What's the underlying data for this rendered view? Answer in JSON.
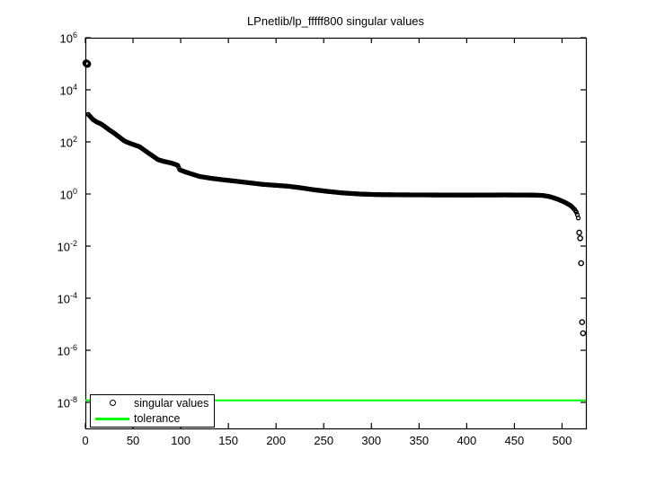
{
  "window": {
    "background": "#ffffff"
  },
  "chart_data": {
    "type": "scatter",
    "title": "LPnetlib/lp_fffff800 singular values",
    "xlim": [
      0,
      525
    ],
    "ylim_log10": [
      -9,
      6
    ],
    "x_ticks": [
      0,
      50,
      100,
      150,
      200,
      250,
      300,
      350,
      400,
      450,
      500
    ],
    "y_tick_exponents": [
      6,
      4,
      2,
      0,
      -2,
      -4,
      -6,
      -8
    ],
    "grid": false,
    "legend": {
      "position": "southwest",
      "entries": [
        "singular values",
        "tolerance"
      ]
    },
    "series": [
      {
        "name": "singular values",
        "marker": "o",
        "color": "#000000",
        "n_points": 522,
        "anchors": [
          [
            1,
            105000
          ],
          [
            2,
            98000
          ],
          [
            3,
            1150
          ],
          [
            5,
            950
          ],
          [
            8,
            720
          ],
          [
            12,
            580
          ],
          [
            16,
            500
          ],
          [
            20,
            400
          ],
          [
            25,
            290
          ],
          [
            30,
            220
          ],
          [
            36,
            150
          ],
          [
            40,
            115
          ],
          [
            43,
            100
          ],
          [
            50,
            80
          ],
          [
            57,
            65
          ],
          [
            63,
            45
          ],
          [
            70,
            30
          ],
          [
            76,
            21
          ],
          [
            82,
            18
          ],
          [
            90,
            15.5
          ],
          [
            95,
            13.5
          ],
          [
            97,
            12.5
          ],
          [
            99,
            8.5
          ],
          [
            105,
            7
          ],
          [
            112,
            5.8
          ],
          [
            120,
            4.7
          ],
          [
            132,
            4.0
          ],
          [
            145,
            3.5
          ],
          [
            158,
            3.1
          ],
          [
            172,
            2.7
          ],
          [
            186,
            2.35
          ],
          [
            200,
            2.15
          ],
          [
            212,
            2.0
          ],
          [
            225,
            1.75
          ],
          [
            240,
            1.45
          ],
          [
            255,
            1.25
          ],
          [
            270,
            1.1
          ],
          [
            288,
            1.0
          ],
          [
            305,
            0.95
          ],
          [
            330,
            0.93
          ],
          [
            360,
            0.92
          ],
          [
            400,
            0.91
          ],
          [
            440,
            0.92
          ],
          [
            470,
            0.91
          ],
          [
            480,
            0.88
          ],
          [
            488,
            0.78
          ],
          [
            496,
            0.62
          ],
          [
            503,
            0.48
          ],
          [
            509,
            0.36
          ],
          [
            513,
            0.26
          ],
          [
            515,
            0.2
          ],
          [
            516,
            0.16
          ],
          [
            517,
            0.12
          ]
        ],
        "tail_points": [
          [
            518,
            0.033
          ],
          [
            519,
            0.02
          ],
          [
            520,
            0.0022
          ],
          [
            521,
            1.2e-05
          ],
          [
            522,
            4.5e-06
          ]
        ]
      },
      {
        "name": "tolerance",
        "style": "hline",
        "color": "#00ff00",
        "value": 1.2e-08
      }
    ]
  }
}
